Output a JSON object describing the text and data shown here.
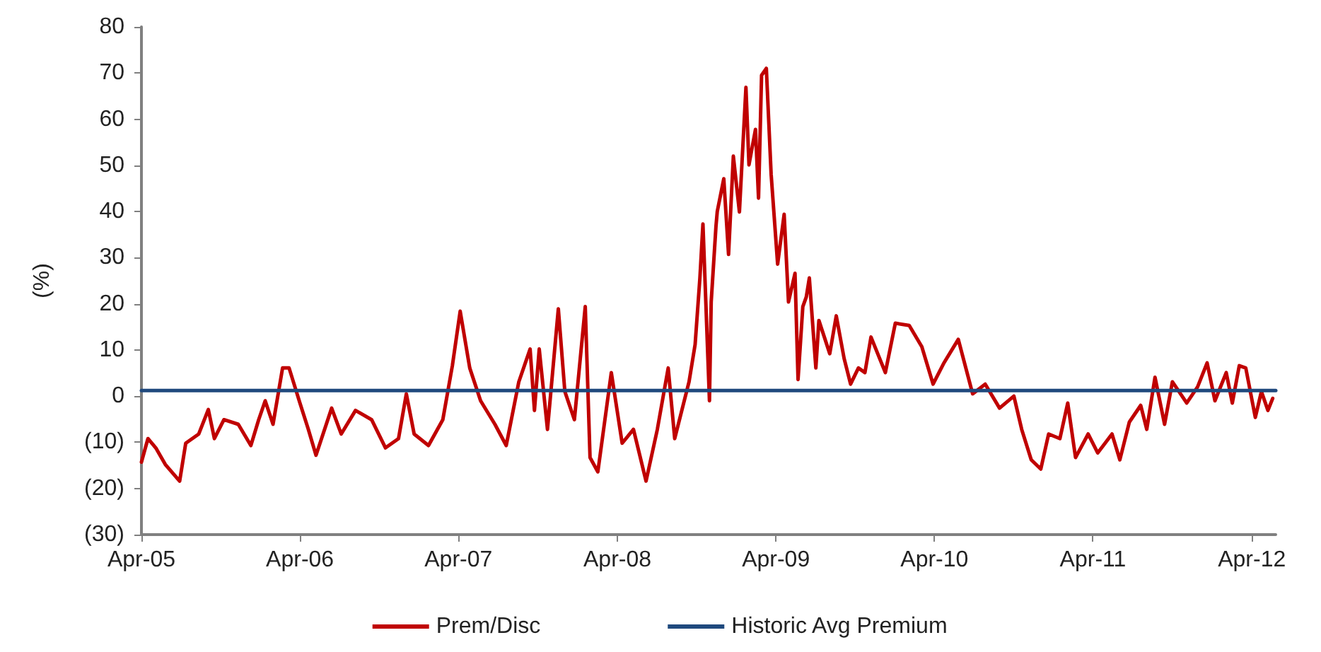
{
  "chart_data": {
    "type": "line",
    "ylabel": "(%)",
    "xlim": [
      "2005-04-01",
      "2012-05-26"
    ],
    "ylim": [
      -30,
      80
    ],
    "xticks": [
      {
        "value": "2005-04-01",
        "label": "Apr-05"
      },
      {
        "value": "2006-04-01",
        "label": "Apr-06"
      },
      {
        "value": "2007-04-01",
        "label": "Apr-07"
      },
      {
        "value": "2008-04-01",
        "label": "Apr-08"
      },
      {
        "value": "2009-04-01",
        "label": "Apr-09"
      },
      {
        "value": "2010-04-01",
        "label": "Apr-10"
      },
      {
        "value": "2011-04-01",
        "label": "Apr-11"
      },
      {
        "value": "2012-04-01",
        "label": "Apr-12"
      }
    ],
    "yticks": [
      {
        "value": -30,
        "label": "(30)"
      },
      {
        "value": -20,
        "label": "(20)"
      },
      {
        "value": -10,
        "label": "(10)"
      },
      0,
      10,
      20,
      30,
      40,
      50,
      60,
      70,
      80
    ],
    "grid": false,
    "legend": "bottom",
    "marker": "none",
    "line_style": "solid",
    "series": [
      {
        "name": "Prem/Disc",
        "color": "#c00000",
        "x": [
          "2005-04-01",
          "2005-04-16",
          "2005-05-04",
          "2005-05-26",
          "2005-06-28",
          "2005-07-12",
          "2005-08-11",
          "2005-09-02",
          "2005-09-16",
          "2005-10-08",
          "2005-11-10",
          "2005-12-09",
          "2005-12-27",
          "2006-01-11",
          "2006-01-29",
          "2006-02-20",
          "2006-03-07",
          "2006-04-01",
          "2006-04-20",
          "2006-05-08",
          "2006-06-13",
          "2006-07-05",
          "2006-08-07",
          "2006-09-13",
          "2006-10-15",
          "2006-11-14",
          "2006-12-02",
          "2006-12-20",
          "2007-01-22",
          "2007-02-24",
          "2007-03-18",
          "2007-04-05",
          "2007-04-27",
          "2007-05-22",
          "2007-06-24",
          "2007-07-20",
          "2007-08-18",
          "2007-09-13",
          "2007-09-23",
          "2007-10-04",
          "2007-10-23",
          "2007-11-17",
          "2007-12-02",
          "2007-12-24",
          "2008-01-18",
          "2008-01-29",
          "2008-02-16",
          "2008-03-18",
          "2008-04-12",
          "2008-05-08",
          "2008-06-06",
          "2008-07-02",
          "2008-07-27",
          "2008-08-11",
          "2008-09-13",
          "2008-09-27",
          "2008-10-08",
          "2008-10-15",
          "2008-10-30",
          "2008-11-03",
          "2008-11-14",
          "2008-11-17",
          "2008-12-02",
          "2008-12-13",
          "2008-12-24",
          "2009-01-07",
          "2009-01-22",
          "2009-01-29",
          "2009-02-13",
          "2009-02-20",
          "2009-02-27",
          "2009-03-10",
          "2009-03-21",
          "2009-04-05",
          "2009-04-20",
          "2009-04-30",
          "2009-05-15",
          "2009-05-22",
          "2009-06-02",
          "2009-06-10",
          "2009-06-17",
          "2009-07-02",
          "2009-07-09",
          "2009-08-03",
          "2009-08-18",
          "2009-09-05",
          "2009-09-20",
          "2009-10-08",
          "2009-10-23",
          "2009-11-06",
          "2009-12-09",
          "2010-01-01",
          "2010-02-02",
          "2010-03-03",
          "2010-03-29",
          "2010-04-23",
          "2010-05-26",
          "2010-06-28",
          "2010-07-27",
          "2010-08-29",
          "2010-10-01",
          "2010-10-19",
          "2010-11-10",
          "2010-12-02",
          "2010-12-20",
          "2011-01-15",
          "2011-02-02",
          "2011-02-20",
          "2011-03-21",
          "2011-04-12",
          "2011-05-15",
          "2011-06-02",
          "2011-06-24",
          "2011-07-20",
          "2011-08-03",
          "2011-08-22",
          "2011-09-13",
          "2011-10-01",
          "2011-11-03",
          "2011-11-28",
          "2011-12-20",
          "2012-01-07",
          "2012-02-02",
          "2012-02-16",
          "2012-03-03",
          "2012-03-18",
          "2012-04-09",
          "2012-04-23",
          "2012-05-08",
          "2012-05-19"
        ],
        "values": [
          -14.3,
          -9.2,
          -11.2,
          -14.8,
          -18.4,
          -10.2,
          -8.2,
          -2.9,
          -9.2,
          -5.1,
          -6.1,
          -10.7,
          -5.1,
          -1.0,
          -6.1,
          6.1,
          6.1,
          -1.5,
          -7.1,
          -12.8,
          -2.6,
          -8.2,
          -3.1,
          -5.1,
          -11.2,
          -9.2,
          0.5,
          -8.2,
          -10.7,
          -5.1,
          6.6,
          18.4,
          6.1,
          -1.0,
          -6.1,
          -10.7,
          3.1,
          10.2,
          -3.1,
          10.2,
          -7.2,
          18.9,
          1.0,
          -5.1,
          19.4,
          -13.3,
          -16.4,
          5.1,
          -10.2,
          -7.2,
          -18.4,
          -7.2,
          6.1,
          -9.2,
          3.1,
          11.2,
          25.6,
          37.3,
          -1.0,
          20.4,
          36.8,
          40.0,
          47.1,
          30.7,
          52.0,
          39.9,
          66.9,
          50.1,
          57.8,
          42.9,
          69.5,
          71.0,
          48.1,
          28.6,
          39.4,
          20.4,
          26.6,
          3.6,
          19.4,
          21.5,
          25.6,
          6.1,
          16.4,
          9.2,
          17.4,
          8.2,
          2.6,
          6.1,
          5.1,
          12.8,
          5.1,
          15.8,
          15.3,
          10.7,
          2.6,
          7.2,
          12.3,
          0.5,
          2.6,
          -2.6,
          0.0,
          -7.2,
          -13.8,
          -15.8,
          -8.2,
          -9.2,
          -1.5,
          -13.3,
          -8.2,
          -12.3,
          -8.2,
          -13.8,
          -5.6,
          -2.0,
          -7.2,
          4.1,
          -6.1,
          3.1,
          -1.5,
          2.0,
          7.2,
          -1.0,
          5.1,
          -1.5,
          6.6,
          6.1,
          -4.6,
          1.0,
          -3.1,
          -0.5
        ]
      },
      {
        "name": "Historic Avg Premium",
        "color": "#1f497d",
        "x": [
          "2005-04-01",
          "2012-05-26"
        ],
        "values": [
          1.2,
          1.2
        ]
      }
    ]
  }
}
